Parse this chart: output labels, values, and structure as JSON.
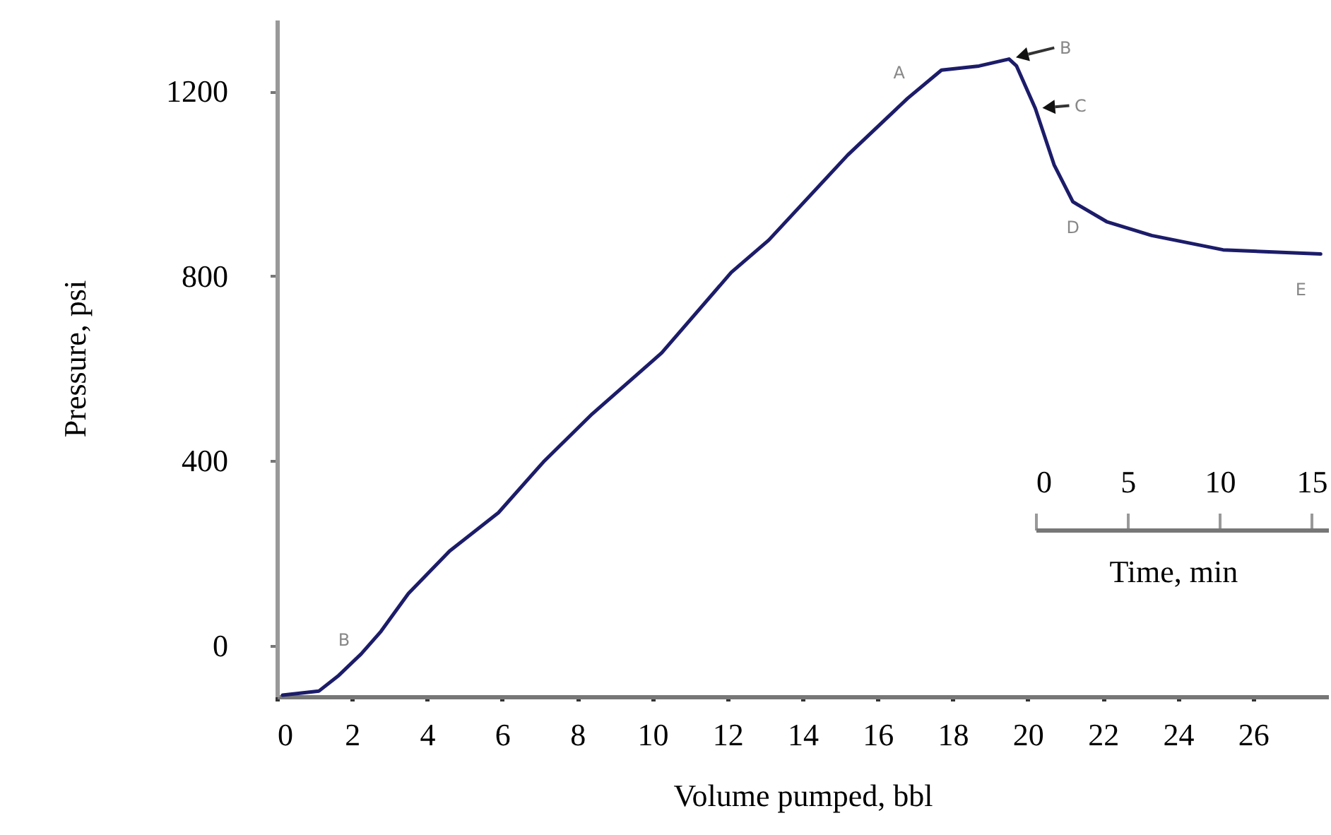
{
  "chart_data": {
    "type": "line",
    "xlabel": "Volume pumped, bbl",
    "ylabel": "Pressure, psi",
    "x": [
      0.15,
      1.12,
      1.65,
      2.24,
      2.77,
      3.5,
      4.6,
      5.9,
      7.1,
      8.4,
      10.25,
      12.1,
      13.1,
      15.2,
      16.8,
      17.7,
      18.7,
      19.5,
      19.7,
      20.2,
      20.7,
      21.2,
      22.1,
      23.3,
      25.2,
      27.8
    ],
    "series": [
      {
        "color": "#1c1c6a",
        "values": [
          -107,
          -98,
          -64,
          -18,
          31,
          113,
          205,
          288,
          398,
          502,
          634,
          808,
          878,
          1062,
          1185,
          1246,
          1255,
          1270,
          1255,
          1163,
          1041,
          961,
          918,
          888,
          857,
          848
        ]
      }
    ],
    "xlim": [
      0,
      28
    ],
    "xticks": [
      0,
      2,
      4,
      6,
      8,
      10,
      12,
      14,
      16,
      18,
      20,
      22,
      24,
      26
    ],
    "ylim": [
      -110,
      1355
    ],
    "yticks": [
      0,
      400,
      800,
      {
        "value": 1200,
        "label": "1200"
      }
    ],
    "x2lim": [
      0,
      15.9
    ],
    "x2ticks": [
      0,
      5,
      10,
      15
    ],
    "x2label": "Time, min",
    "annotations": [
      {
        "text": "B",
        "x": 2.24,
        "y": -18
      },
      {
        "text": "A",
        "x": 16.8,
        "y": 1185
      },
      {
        "text": "B",
        "x": 19.5,
        "y": 1270
      },
      {
        "text": "C",
        "x": 20.2,
        "y": 1163
      },
      {
        "text": "D",
        "x": 21.2,
        "y": 961
      },
      {
        "text": "E",
        "x": 27.8,
        "y": 848
      }
    ],
    "grid": false,
    "line_style": "solid"
  }
}
